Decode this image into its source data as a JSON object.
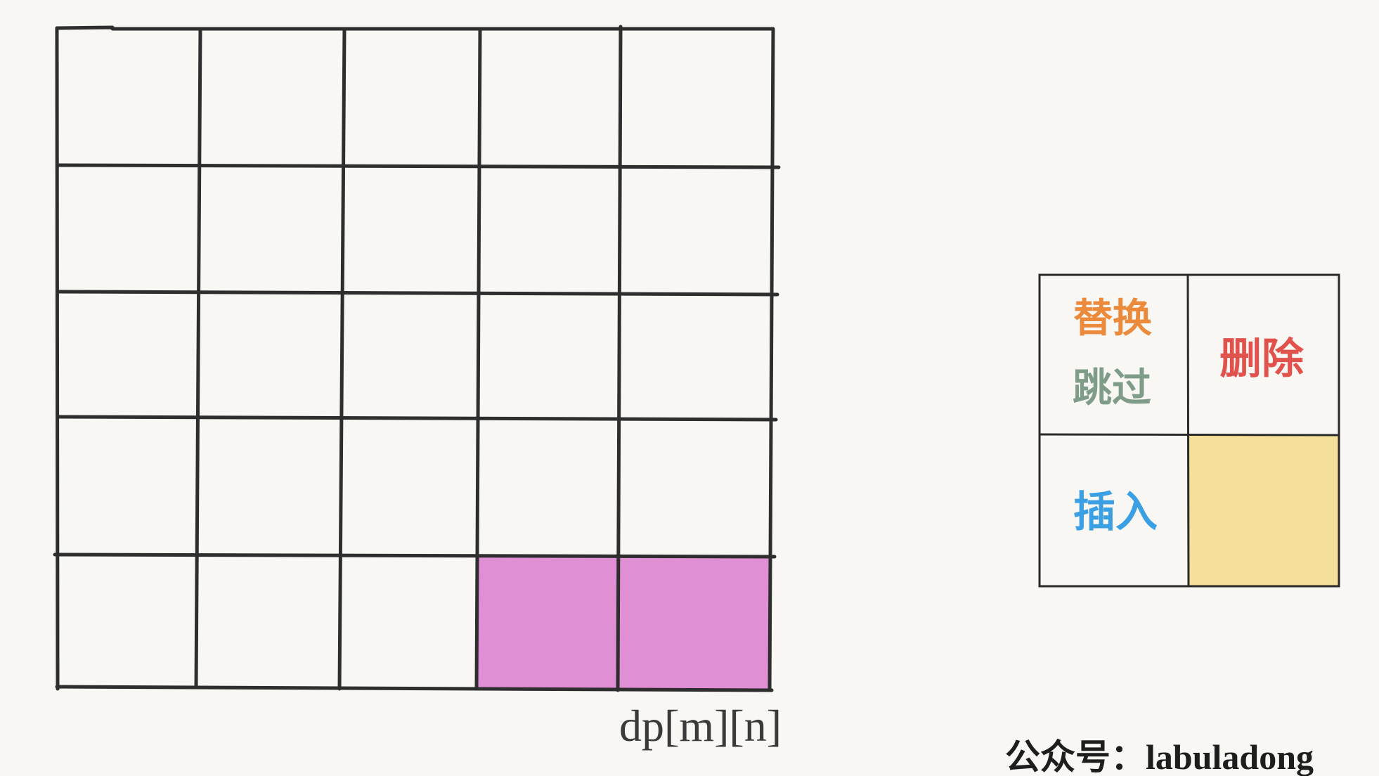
{
  "diagram": {
    "cell_label": "dp[m][n]",
    "legend": {
      "replace": {
        "label": "替换",
        "color": "#ec8a3c"
      },
      "skip": {
        "label": "跳过",
        "color": "#7f9c89"
      },
      "delete": {
        "label": "删除",
        "color": "#e2524c"
      },
      "insert": {
        "label": "插入",
        "color": "#3b9fe4"
      },
      "current_cell_color": "#f5e09a"
    },
    "highlight_color": "#e08fd5",
    "watermark": "公众号：labuladong"
  }
}
